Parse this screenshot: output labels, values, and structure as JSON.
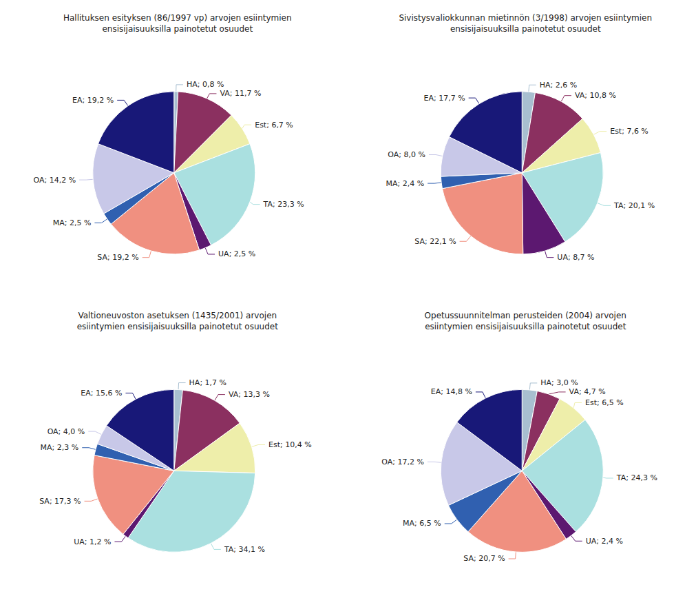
{
  "chart_data": [
    {
      "type": "pie",
      "title": "Hallituksen esityksen (86/1997 vp) arvojen esiintymien\nensisijaisuuksilla painotetut osuudet",
      "categories": [
        "HA",
        "VA",
        "Est",
        "TA",
        "UA",
        "SA",
        "MA",
        "OA",
        "EA"
      ],
      "values": [
        0.8,
        11.7,
        6.7,
        23.3,
        2.5,
        19.2,
        2.5,
        14.2,
        19.2
      ],
      "value_labels": [
        "HA; 0,8 %",
        "VA; 11,7 %",
        "Est; 6,7 %",
        "TA; 23,3 %",
        "UA; 2,5 %",
        "SA; 19,2 %",
        "MA; 2,5 %",
        "OA; 14,2 %",
        "EA; 19,2 %"
      ],
      "colors": [
        "#a8bfd0",
        "#8b3060",
        "#eeeeaa",
        "#aae0e0",
        "#5c1870",
        "#f09080",
        "#3060b0",
        "#c8c8e8",
        "#181878"
      ],
      "data_labels": true
    },
    {
      "type": "pie",
      "title": "Sivistysvaliokkunnan mietinnön (3/1998) arvojen esiintymien\nensisijaisuuksilla painotetut osuudet",
      "categories": [
        "HA",
        "VA",
        "Est",
        "TA",
        "UA",
        "SA",
        "MA",
        "OA",
        "EA"
      ],
      "values": [
        2.6,
        10.8,
        7.6,
        20.1,
        8.7,
        22.1,
        2.4,
        8.0,
        17.7
      ],
      "value_labels": [
        "HA; 2,6 %",
        "VA; 10,8 %",
        "Est; 7,6 %",
        "TA; 20,1 %",
        "UA; 8,7 %",
        "SA; 22,1 %",
        "MA; 2,4 %",
        "OA; 8,0 %",
        "EA; 17,7 %"
      ],
      "colors": [
        "#a8bfd0",
        "#8b3060",
        "#eeeeaa",
        "#aae0e0",
        "#5c1870",
        "#f09080",
        "#3060b0",
        "#c8c8e8",
        "#181878"
      ],
      "data_labels": true
    },
    {
      "type": "pie",
      "title": "Valtioneuvoston asetuksen (1435/2001) arvojen\nesiintymien ensisijaisuuksilla painotetut osuudet",
      "categories": [
        "HA",
        "VA",
        "Est",
        "TA",
        "UA",
        "SA",
        "MA",
        "OA",
        "EA"
      ],
      "values": [
        1.7,
        13.3,
        10.4,
        34.1,
        1.2,
        17.3,
        2.3,
        4.0,
        15.6
      ],
      "value_labels": [
        "HA; 1,7 %",
        "VA; 13,3 %",
        "Est; 10,4 %",
        "TA; 34,1 %",
        "UA; 1,2 %",
        "SA; 17,3 %",
        "MA; 2,3 %",
        "OA; 4,0 %",
        "EA; 15,6 %"
      ],
      "colors": [
        "#a8bfd0",
        "#8b3060",
        "#eeeeaa",
        "#aae0e0",
        "#5c1870",
        "#f09080",
        "#3060b0",
        "#c8c8e8",
        "#181878"
      ],
      "data_labels": true
    },
    {
      "type": "pie",
      "title": "Opetussuunnitelman perusteiden (2004) arvojen\nesiintymien ensisijaisuuksilla painotetut osuudet",
      "categories": [
        "HA",
        "VA",
        "Est",
        "TA",
        "UA",
        "SA",
        "MA",
        "OA",
        "EA"
      ],
      "values": [
        3.0,
        4.7,
        6.5,
        24.3,
        2.4,
        20.7,
        6.5,
        17.2,
        14.8
      ],
      "value_labels": [
        "HA; 3,0 %",
        "VA; 4,7 %",
        "Est; 6,5 %",
        "TA; 24,3 %",
        "UA; 2,4 %",
        "SA; 20,7 %",
        "MA; 6,5 %",
        "OA; 17,2 %",
        "EA; 14,8 %"
      ],
      "colors": [
        "#a8bfd0",
        "#8b3060",
        "#eeeeaa",
        "#aae0e0",
        "#5c1870",
        "#f09080",
        "#3060b0",
        "#c8c8e8",
        "#181878"
      ],
      "data_labels": true
    }
  ]
}
